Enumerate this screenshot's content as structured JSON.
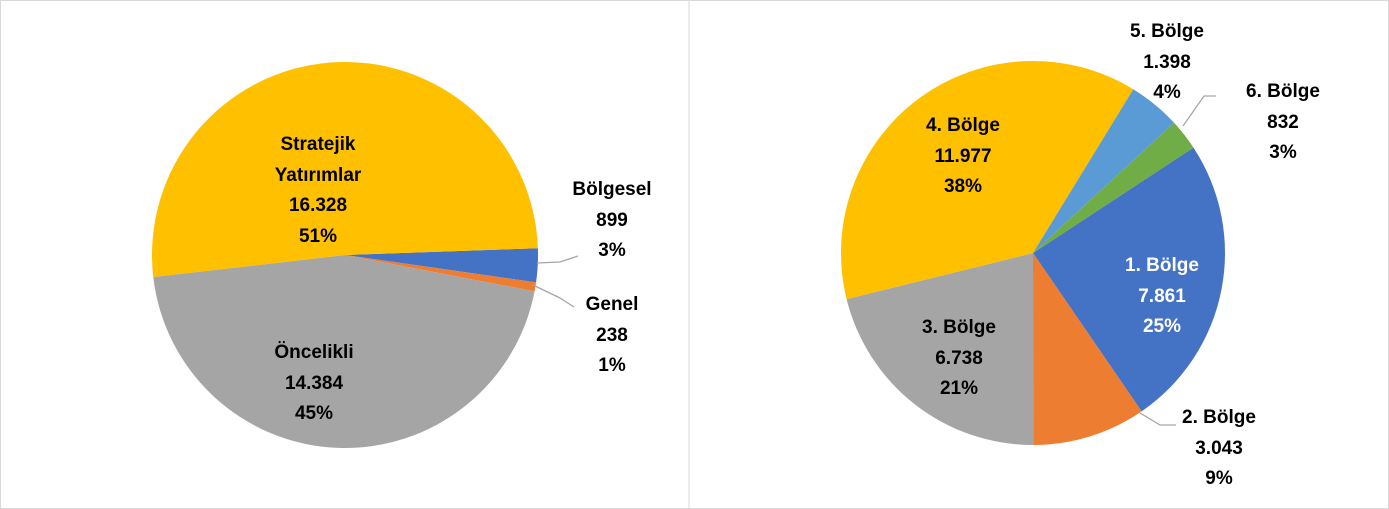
{
  "chart_data": [
    {
      "type": "pie",
      "categories": [
        "Bölgesel",
        "Genel",
        "Öncelikli",
        "Stratejik Yatırımlar"
      ],
      "values": [
        899,
        238,
        14384,
        16328
      ],
      "value_labels": [
        "899",
        "238",
        "14.384",
        "16.328"
      ],
      "percent_labels": [
        "3%",
        "1%",
        "45%",
        "51%"
      ],
      "colors": [
        "#4472C4",
        "#ED7D31",
        "#A5A5A5",
        "#FFC000"
      ]
    },
    {
      "type": "pie",
      "categories": [
        "1. Bölge",
        "2. Bölge",
        "3. Bölge",
        "4. Bölge",
        "5. Bölge",
        "6. Bölge"
      ],
      "values": [
        7861,
        3043,
        6738,
        11977,
        1398,
        832
      ],
      "value_labels": [
        "7.861",
        "3.043",
        "6.738",
        "11.977",
        "1.398",
        "832"
      ],
      "percent_labels": [
        "25%",
        "9%",
        "21%",
        "38%",
        "4%",
        "3%"
      ],
      "colors": [
        "#4472C4",
        "#ED7D31",
        "#A5A5A5",
        "#FFC000",
        "#5B9BD5",
        "#70AD47"
      ]
    }
  ]
}
